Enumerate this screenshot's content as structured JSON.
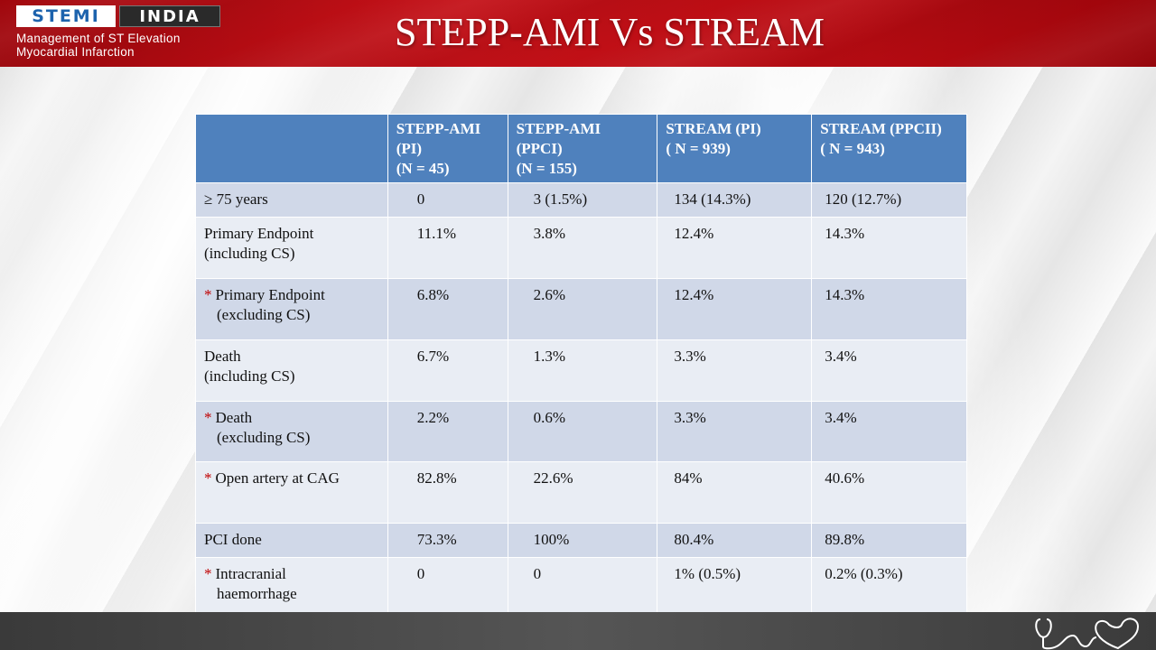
{
  "header": {
    "logo_left": "STEMI",
    "logo_right": "INDIA",
    "logo_sub_line1": "Management of ST Elevation",
    "logo_sub_line2": "Myocardial Infarction",
    "title": "STEPP-AMI Vs STREAM"
  },
  "table": {
    "columns": [
      {
        "line1": "",
        "line2": "",
        "line3": ""
      },
      {
        "line1": "STEPP-AMI",
        "line2": "(PI)",
        "line3": "(N = 45)"
      },
      {
        "line1": "STEPP-AMI",
        "line2": "(PPCI)",
        "line3": "(N = 155)"
      },
      {
        "line1": "STREAM (PI)",
        "line2": "( N = 939)",
        "line3": ""
      },
      {
        "line1": "STREAM (PPCII)",
        "line2": "( N = 943)",
        "line3": ""
      }
    ],
    "rows": [
      {
        "star": "",
        "label1": "≥ 75 years",
        "label2": "",
        "values": [
          "0",
          "3 (1.5%)",
          "134 (14.3%)",
          "120 (12.7%)"
        ]
      },
      {
        "star": "",
        "label1": "Primary Endpoint",
        "label2": "(including CS)",
        "values": [
          "11.1%",
          "3.8%",
          "12.4%",
          "14.3%"
        ]
      },
      {
        "star": "*",
        "label1": "Primary Endpoint",
        "label2": "(excluding CS)",
        "values": [
          "6.8%",
          "2.6%",
          "12.4%",
          "14.3%"
        ]
      },
      {
        "star": "",
        "label1": "Death",
        "label2": "(including CS)",
        "values": [
          "6.7%",
          "1.3%",
          "3.3%",
          "3.4%"
        ]
      },
      {
        "star": "*",
        "label1": "Death",
        "label2": "(excluding CS)",
        "values": [
          "2.2%",
          "0.6%",
          "3.3%",
          "3.4%"
        ]
      },
      {
        "star": "*",
        "label1": "Open  artery at CAG",
        "label2": "",
        "values": [
          "82.8%",
          "22.6%",
          "84%",
          "40.6%"
        ]
      },
      {
        "star": "",
        "label1": "PCI done",
        "label2": "",
        "values": [
          "73.3%",
          "100%",
          "80.4%",
          "89.8%"
        ]
      },
      {
        "star": "*",
        "label1": "Intracranial",
        "label2": "haemorrhage",
        "values": [
          "0",
          "0",
          "1% (0.5%)",
          "0.2%  (0.3%)"
        ]
      }
    ]
  },
  "icons": {
    "footer": "stethoscope-heart-icon"
  },
  "colors": {
    "header_red": "#c41118",
    "table_header_blue": "#4f81bd",
    "row_odd": "#d0d8e8",
    "row_even": "#e9edf4",
    "star_red": "#c00000"
  }
}
